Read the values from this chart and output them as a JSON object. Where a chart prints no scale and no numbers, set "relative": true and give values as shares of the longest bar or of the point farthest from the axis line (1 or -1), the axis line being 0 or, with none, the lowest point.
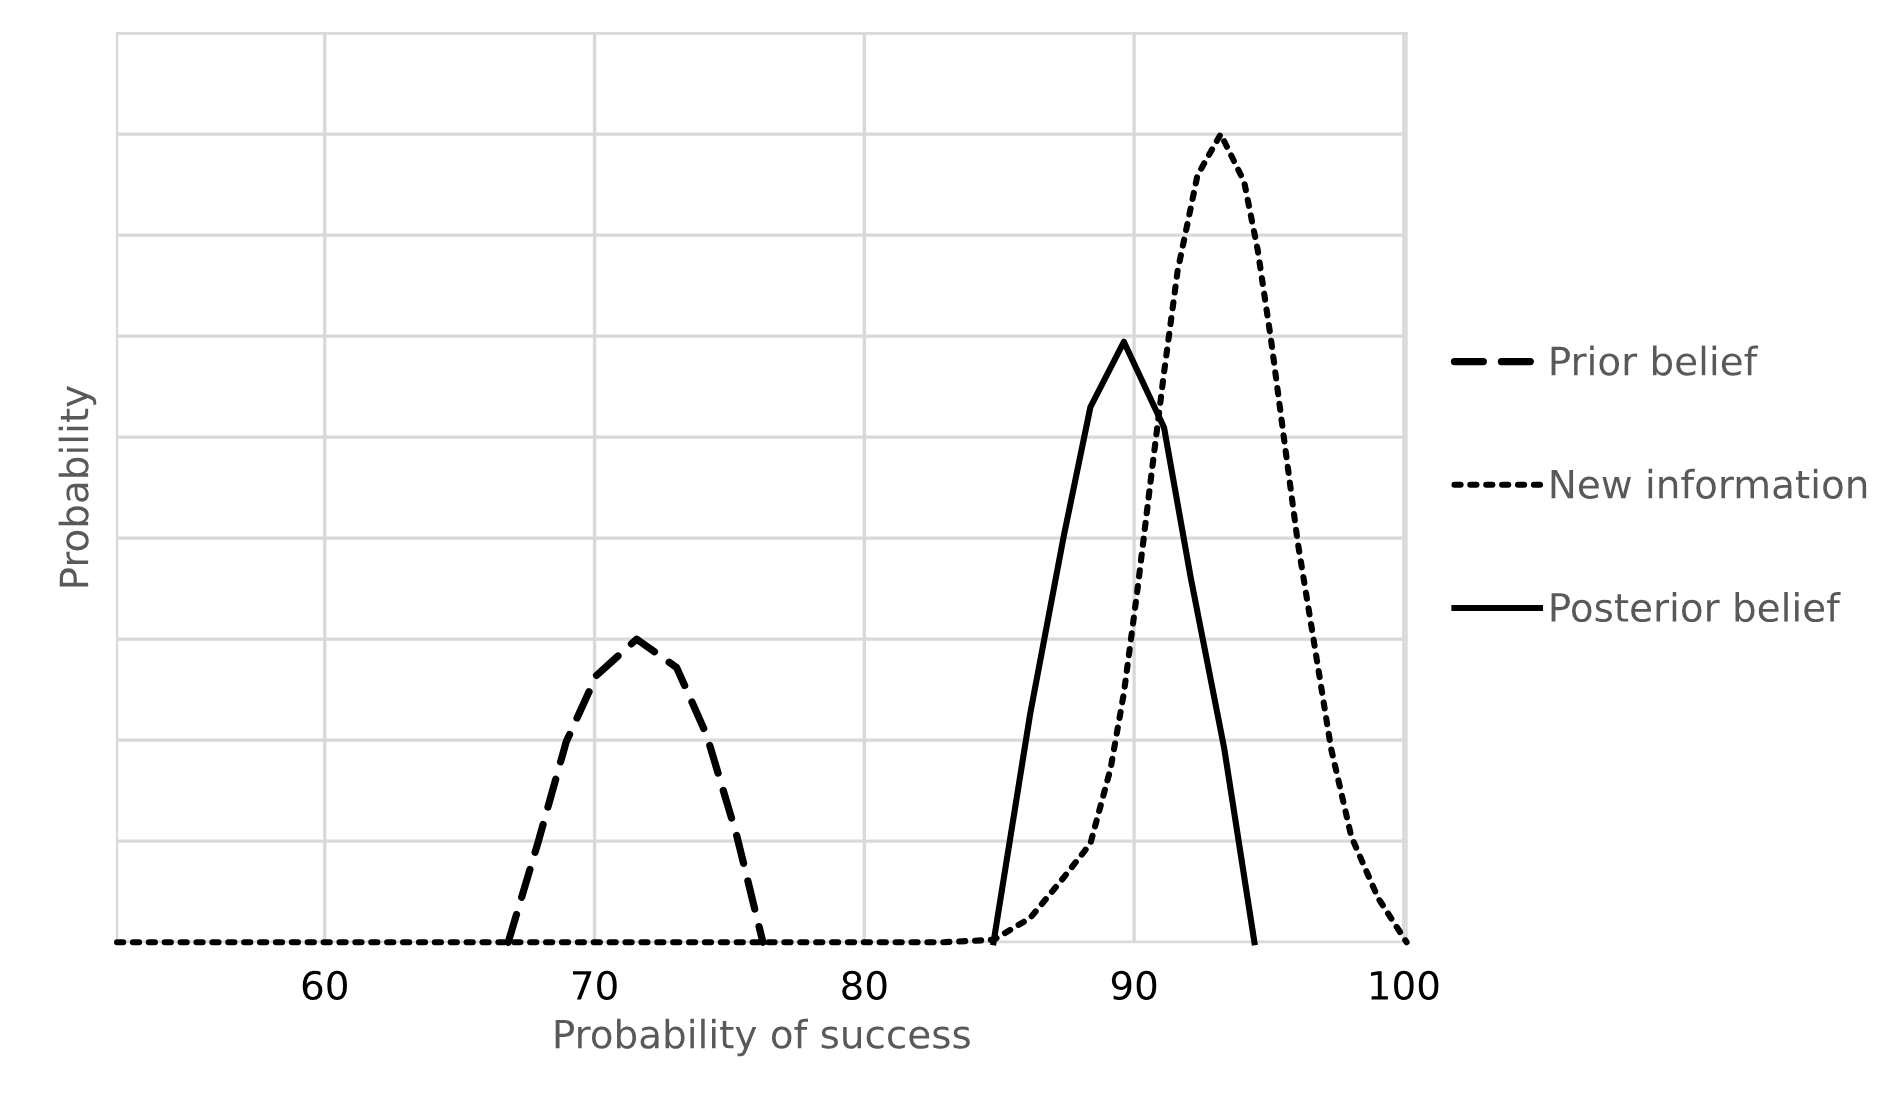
{
  "chart_data": {
    "type": "line",
    "xlabel": "Probability of success",
    "ylabel": "Probability",
    "relative": true,
    "xlim": [
      52.3,
      100.1
    ],
    "xticks": [
      60,
      70,
      80,
      90,
      100
    ],
    "grid": true,
    "legend": "right",
    "marker": "none",
    "series": [
      {
        "name": "Prior belief",
        "color": "#000000",
        "line_style": "dashed",
        "x": [
          66.8,
          67.91,
          68.95,
          70.07,
          71.56,
          73.04,
          74.16,
          75.27,
          76.24
        ],
        "values": [
          0,
          0.124,
          0.248,
          0.33,
          0.375,
          0.34,
          0.256,
          0.132,
          0
        ]
      },
      {
        "name": "New information",
        "color": "#000000",
        "line_style": "dotted",
        "x": [
          52.3,
          82.93,
          84.79,
          86.15,
          87.39,
          88.38,
          89.13,
          89.62,
          90.12,
          90.61,
          91.11,
          91.61,
          92.35,
          93.21,
          94.08,
          94.58,
          95.07,
          95.57,
          96.07,
          96.69,
          97.3,
          98.05,
          99.04,
          100.1
        ],
        "values": [
          0,
          0,
          0.003,
          0.03,
          0.08,
          0.122,
          0.215,
          0.308,
          0.435,
          0.57,
          0.705,
          0.83,
          0.949,
          1,
          0.941,
          0.857,
          0.747,
          0.62,
          0.494,
          0.367,
          0.24,
          0.131,
          0.055,
          0
        ]
      },
      {
        "name": "Posterior belief",
        "color": "#000000",
        "line_style": "solid",
        "x": [
          84.79,
          86.15,
          87.39,
          88.38,
          89.62,
          91.11,
          92.1,
          93.34,
          94.46
        ],
        "values": [
          0,
          0.283,
          0.502,
          0.662,
          0.743,
          0.637,
          0.451,
          0.24,
          0
        ]
      }
    ]
  }
}
